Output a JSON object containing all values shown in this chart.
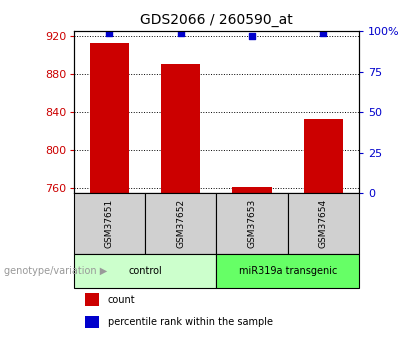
{
  "title": "GDS2066 / 260590_at",
  "samples": [
    "GSM37651",
    "GSM37652",
    "GSM37653",
    "GSM37654"
  ],
  "bar_values": [
    912,
    890,
    762,
    833
  ],
  "dot_values_pct": [
    99,
    99,
    97,
    99
  ],
  "ylim_left": [
    755,
    925
  ],
  "ylim_right": [
    0,
    100
  ],
  "yticks_left": [
    760,
    800,
    840,
    880,
    920
  ],
  "yticks_right": [
    0,
    25,
    50,
    75,
    100
  ],
  "bar_color": "#cc0000",
  "dot_color": "#0000cc",
  "bar_width": 0.55,
  "grid_color": "#000000",
  "bg_color": "#ffffff",
  "plot_bg": "#ffffff",
  "group_labels": [
    "control",
    "miR319a transgenic"
  ],
  "group_colors_light": "#ccffcc",
  "group_colors_bright": "#66ff66",
  "group_ranges": [
    [
      0,
      2
    ],
    [
      2,
      4
    ]
  ],
  "legend_red": "#cc0000",
  "legend_blue": "#0000cc",
  "label_left_color": "#cc0000",
  "label_right_color": "#0000cc",
  "gray_box_color": "#d0d0d0",
  "sample_box_text_color": "#000000",
  "genotype_label": "genotype/variation",
  "arrow_color": "#999999"
}
